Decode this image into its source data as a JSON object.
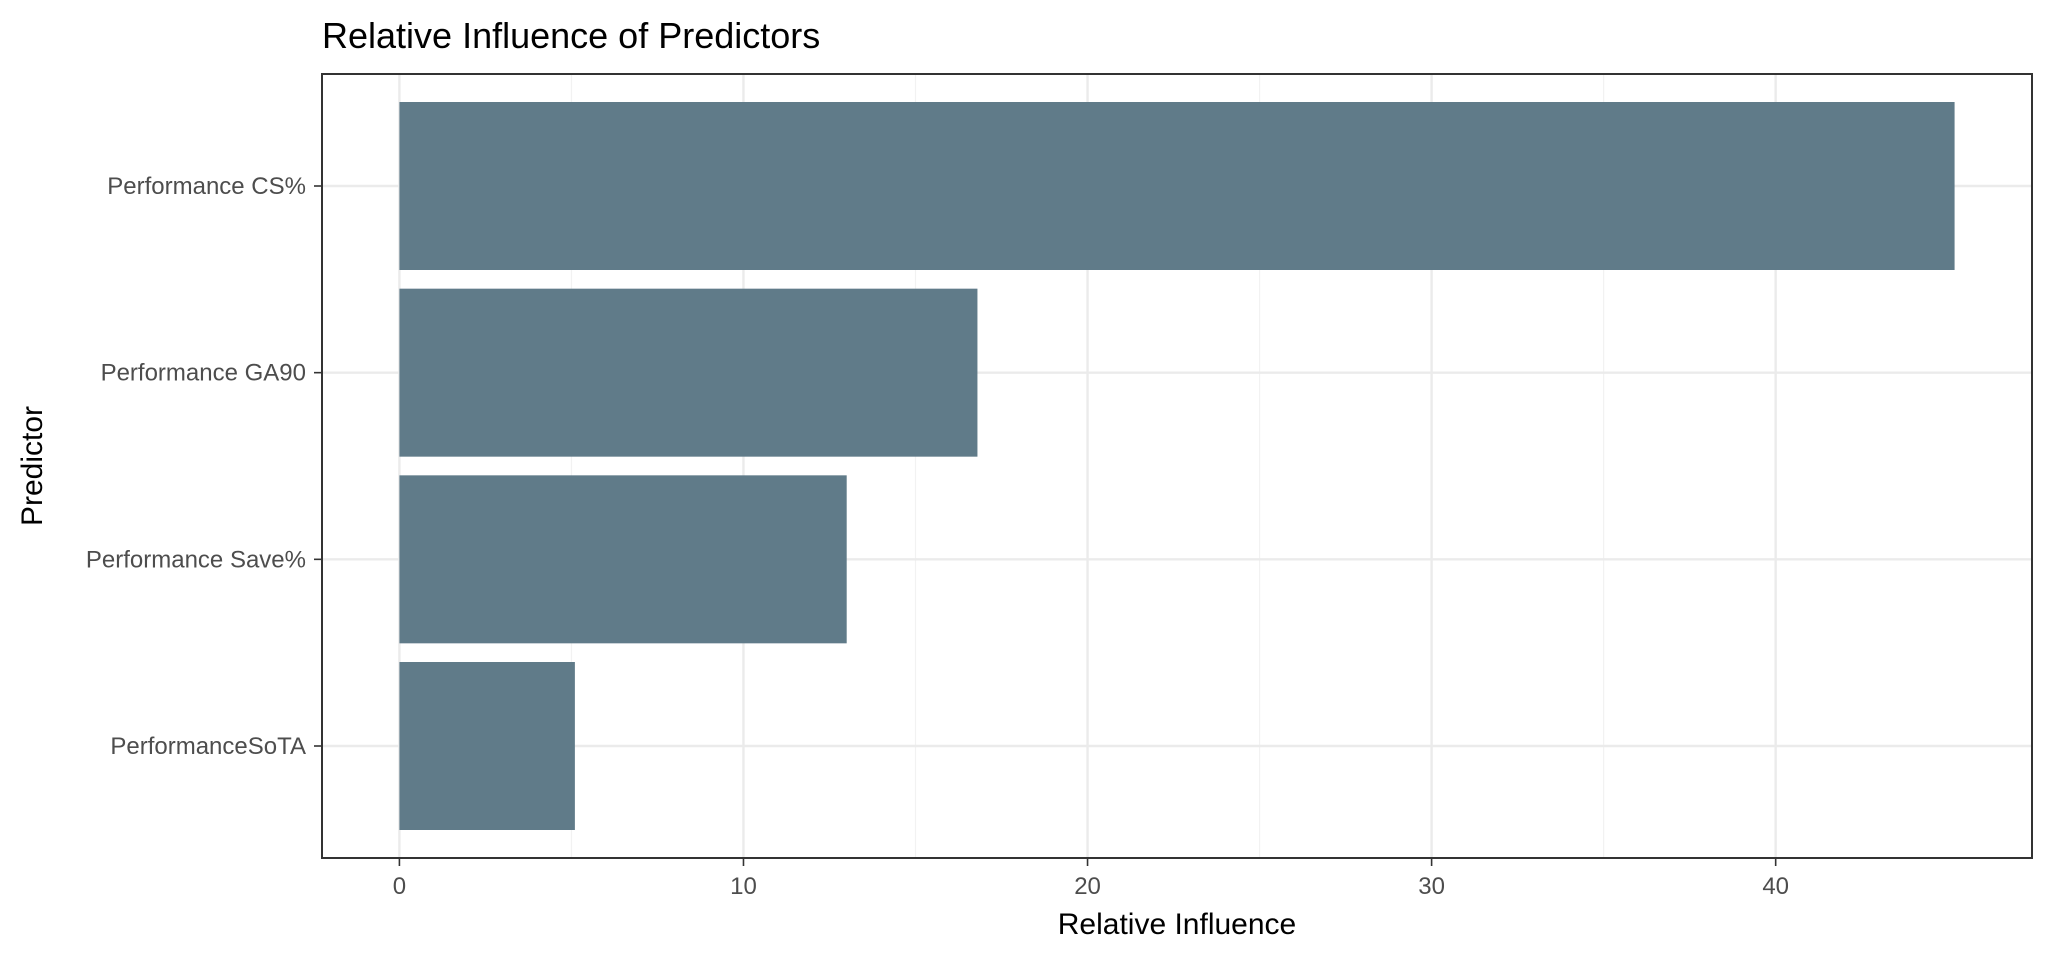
{
  "chart_data": {
    "type": "bar",
    "orientation": "horizontal",
    "title": "Relative Influence of Predictors",
    "xlabel": "Relative Influence",
    "ylabel": "Predictor",
    "categories": [
      "Performance CS%",
      "Performance GA90",
      "Performance Save%",
      "PerformanceSoTA"
    ],
    "values": [
      45.2,
      16.8,
      13.0,
      5.1
    ],
    "xlim": [
      -2.25,
      47.45
    ],
    "xticks": [
      0,
      10,
      20,
      30,
      40
    ],
    "grid": true,
    "bar_color": "#607b89"
  }
}
